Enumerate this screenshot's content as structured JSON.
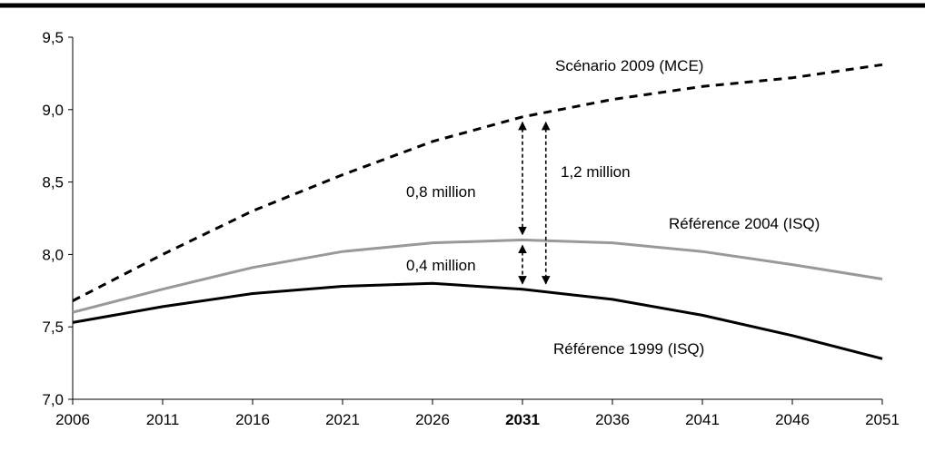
{
  "chart_data": {
    "type": "line",
    "x": [
      2006,
      2011,
      2016,
      2021,
      2026,
      2031,
      2036,
      2041,
      2046,
      2051
    ],
    "x_tick_labels": [
      "2006",
      "2011",
      "2016",
      "2021",
      "2026",
      "2031",
      "2036",
      "2041",
      "2046",
      "2051"
    ],
    "x_highlight": "2031",
    "y_tick_labels": [
      "7,0",
      "7,5",
      "8,0",
      "8,5",
      "9,0",
      "9,5"
    ],
    "y_ticks": [
      7.0,
      7.5,
      8.0,
      8.5,
      9.0,
      9.5
    ],
    "ylim": [
      7.0,
      9.5
    ],
    "xlim": [
      2006,
      2051
    ],
    "grid": false,
    "legend": "none (series labeled inline)",
    "series": [
      {
        "name": "Scénario 2009 (MCE)",
        "style": "dashed",
        "color": "#000000",
        "values": [
          7.68,
          8.0,
          8.3,
          8.55,
          8.78,
          8.95,
          9.07,
          9.16,
          9.22,
          9.31
        ]
      },
      {
        "name": "Référence 2004 (ISQ)",
        "style": "solid",
        "color": "#999999",
        "values": [
          7.6,
          7.76,
          7.91,
          8.02,
          8.08,
          8.1,
          8.08,
          8.02,
          7.93,
          7.83
        ]
      },
      {
        "name": "Référence 1999 (ISQ)",
        "style": "solid",
        "color": "#000000",
        "values": [
          7.53,
          7.64,
          7.73,
          7.78,
          7.8,
          7.76,
          7.69,
          7.58,
          7.44,
          7.28
        ]
      }
    ],
    "annotations": [
      {
        "text": "0,8 million",
        "x": 2031,
        "from": 8.1,
        "to": 8.95
      },
      {
        "text": "1,2 million",
        "x": 2032.3,
        "from": 7.76,
        "to": 8.95
      },
      {
        "text": "0,4 million",
        "x": 2031,
        "from": 7.76,
        "to": 8.1
      }
    ]
  }
}
